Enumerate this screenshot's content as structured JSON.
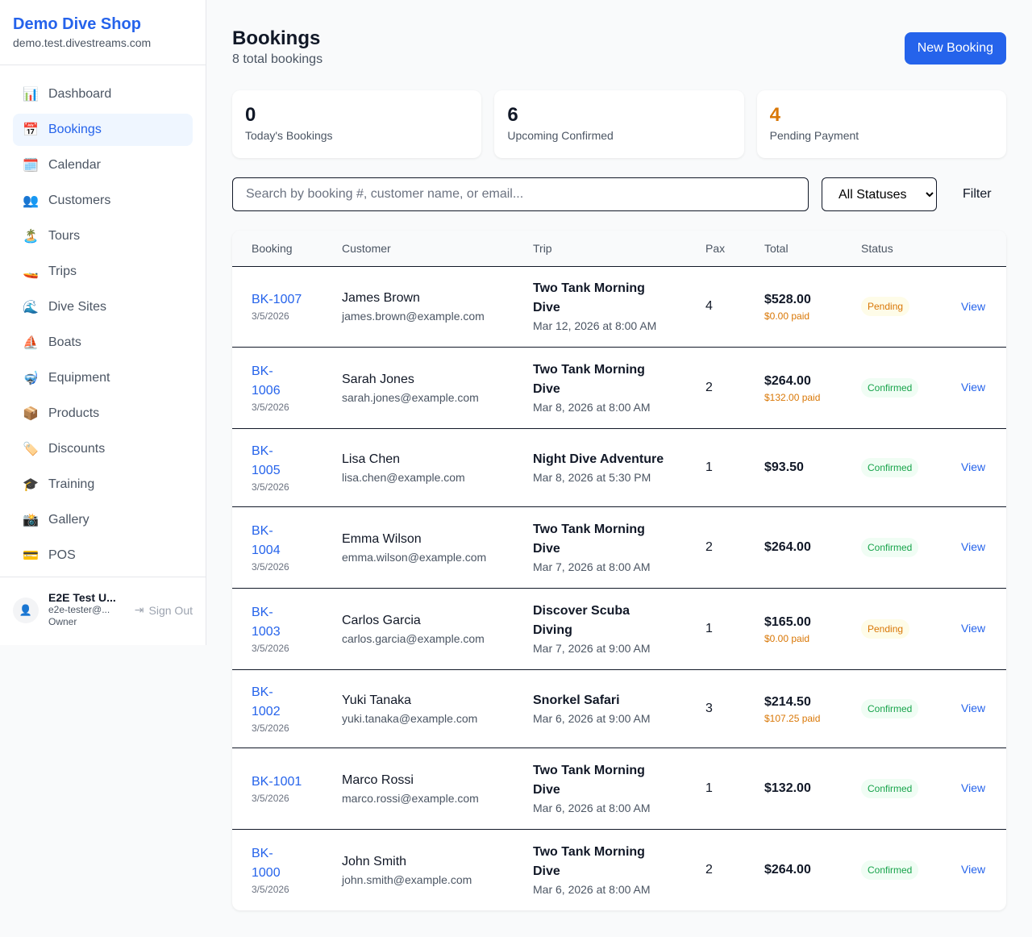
{
  "sidebar": {
    "shop_name": "Demo Dive Shop",
    "domain": "demo.test.divestreams.com",
    "items": [
      {
        "label": "Dashboard",
        "icon": "📊",
        "name": "dashboard"
      },
      {
        "label": "Bookings",
        "icon": "📅",
        "name": "bookings",
        "active": true
      },
      {
        "label": "Calendar",
        "icon": "🗓️",
        "name": "calendar"
      },
      {
        "label": "Customers",
        "icon": "👥",
        "name": "customers"
      },
      {
        "label": "Tours",
        "icon": "🏝️",
        "name": "tours"
      },
      {
        "label": "Trips",
        "icon": "🚤",
        "name": "trips"
      },
      {
        "label": "Dive Sites",
        "icon": "🌊",
        "name": "dive-sites"
      },
      {
        "label": "Boats",
        "icon": "⛵",
        "name": "boats"
      },
      {
        "label": "Equipment",
        "icon": "🤿",
        "name": "equipment"
      },
      {
        "label": "Products",
        "icon": "📦",
        "name": "products"
      },
      {
        "label": "Discounts",
        "icon": "🏷️",
        "name": "discounts"
      },
      {
        "label": "Training",
        "icon": "🎓",
        "name": "training"
      },
      {
        "label": "Gallery",
        "icon": "📸",
        "name": "gallery"
      },
      {
        "label": "POS",
        "icon": "💳",
        "name": "pos"
      }
    ],
    "user": {
      "name": "E2E Test U...",
      "email": "e2e-tester@...",
      "role": "Owner",
      "sign_out": "Sign Out"
    }
  },
  "header": {
    "title": "Bookings",
    "subtitle": "8 total bookings",
    "new_button": "New Booking"
  },
  "stats": [
    {
      "value": "0",
      "label": "Today's Bookings",
      "color": "#111827"
    },
    {
      "value": "6",
      "label": "Upcoming Confirmed",
      "color": "#111827"
    },
    {
      "value": "4",
      "label": "Pending Payment",
      "color": "#d97706"
    }
  ],
  "filters": {
    "search_placeholder": "Search by booking #, customer name, or email...",
    "status_selected": "All Statuses",
    "filter_button": "Filter"
  },
  "table": {
    "columns": [
      "Booking",
      "Customer",
      "Trip",
      "Pax",
      "Total",
      "Status",
      ""
    ],
    "view_label": "View",
    "rows": [
      {
        "id": "BK-1007",
        "date": "3/5/2026",
        "customer": "James Brown",
        "email": "james.brown@example.com",
        "trip": "Two Tank Morning Dive",
        "trip_date": "Mar 12, 2026 at 8:00 AM",
        "pax": "4",
        "total": "$528.00",
        "paid": "$0.00 paid",
        "status": "Pending"
      },
      {
        "id": "BK-1006",
        "date": "3/5/2026",
        "customer": "Sarah Jones",
        "email": "sarah.jones@example.com",
        "trip": "Two Tank Morning Dive",
        "trip_date": "Mar 8, 2026 at 8:00 AM",
        "pax": "2",
        "total": "$264.00",
        "paid": "$132.00 paid",
        "status": "Confirmed"
      },
      {
        "id": "BK-1005",
        "date": "3/5/2026",
        "customer": "Lisa Chen",
        "email": "lisa.chen@example.com",
        "trip": "Night Dive Adventure",
        "trip_date": "Mar 8, 2026 at 5:30 PM",
        "pax": "1",
        "total": "$93.50",
        "paid": "",
        "status": "Confirmed"
      },
      {
        "id": "BK-1004",
        "date": "3/5/2026",
        "customer": "Emma Wilson",
        "email": "emma.wilson@example.com",
        "trip": "Two Tank Morning Dive",
        "trip_date": "Mar 7, 2026 at 8:00 AM",
        "pax": "2",
        "total": "$264.00",
        "paid": "",
        "status": "Confirmed"
      },
      {
        "id": "BK-1003",
        "date": "3/5/2026",
        "customer": "Carlos Garcia",
        "email": "carlos.garcia@example.com",
        "trip": "Discover Scuba Diving",
        "trip_date": "Mar 7, 2026 at 9:00 AM",
        "pax": "1",
        "total": "$165.00",
        "paid": "$0.00 paid",
        "status": "Pending"
      },
      {
        "id": "BK-1002",
        "date": "3/5/2026",
        "customer": "Yuki Tanaka",
        "email": "yuki.tanaka@example.com",
        "trip": "Snorkel Safari",
        "trip_date": "Mar 6, 2026 at 9:00 AM",
        "pax": "3",
        "total": "$214.50",
        "paid": "$107.25 paid",
        "status": "Confirmed"
      },
      {
        "id": "BK-1001",
        "date": "3/5/2026",
        "customer": "Marco Rossi",
        "email": "marco.rossi@example.com",
        "trip": "Two Tank Morning Dive",
        "trip_date": "Mar 6, 2026 at 8:00 AM",
        "pax": "1",
        "total": "$132.00",
        "paid": "",
        "status": "Confirmed"
      },
      {
        "id": "BK-1000",
        "date": "3/5/2026",
        "customer": "John Smith",
        "email": "john.smith@example.com",
        "trip": "Two Tank Morning Dive",
        "trip_date": "Mar 6, 2026 at 8:00 AM",
        "pax": "2",
        "total": "$264.00",
        "paid": "",
        "status": "Confirmed"
      }
    ]
  }
}
